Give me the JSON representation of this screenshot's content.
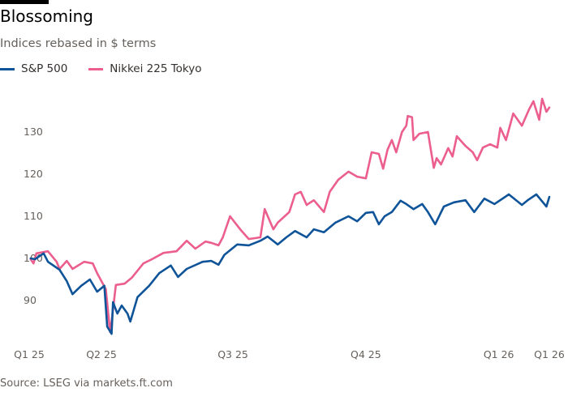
{
  "title": "Blossoming",
  "subtitle": "Indices rebased in $ terms",
  "source": "Source: LSEG via markets.ft.com",
  "colors": {
    "sp500": "#0f5499",
    "nikkei": "#eb5e8d"
  },
  "chart_data": {
    "type": "line",
    "title": "Blossoming",
    "subtitle": "Indices rebased in $ terms",
    "xlim": [
      "2025-02-10",
      "2026-02-05"
    ],
    "ylim": [
      80,
      140
    ],
    "grid": false,
    "legend_placement": "top-left",
    "y_ticks": [
      90,
      100,
      110,
      120,
      130
    ],
    "x_ticks": [
      {
        "label": "Q1 25",
        "date": "2025-02-10"
      },
      {
        "label": "Q2 25",
        "date": "2025-04-01"
      },
      {
        "label": "Q3 25",
        "date": "2025-07-01"
      },
      {
        "label": "Q4 25",
        "date": "2025-10-01"
      },
      {
        "label": "Q1 26",
        "date": "2026-01-01"
      },
      {
        "label": "Q1 26",
        "date": "2026-02-05"
      }
    ],
    "series": [
      {
        "name": "S&P 500",
        "color": "#0f5499",
        "points": [
          [
            "2025-02-11",
            100.0
          ],
          [
            "2025-02-14",
            99.8
          ],
          [
            "2025-02-20",
            101.2
          ],
          [
            "2025-02-23",
            99.2
          ],
          [
            "2025-03-03",
            97.3
          ],
          [
            "2025-03-08",
            94.6
          ],
          [
            "2025-03-12",
            91.5
          ],
          [
            "2025-03-18",
            93.5
          ],
          [
            "2025-03-24",
            95.0
          ],
          [
            "2025-03-29",
            92.1
          ],
          [
            "2025-04-03",
            93.5
          ],
          [
            "2025-04-05",
            83.8
          ],
          [
            "2025-04-08",
            82.1
          ],
          [
            "2025-04-09",
            89.6
          ],
          [
            "2025-04-12",
            86.9
          ],
          [
            "2025-04-15",
            88.8
          ],
          [
            "2025-04-19",
            86.9
          ],
          [
            "2025-04-21",
            85.0
          ],
          [
            "2025-04-26",
            90.8
          ],
          [
            "2025-05-04",
            93.5
          ],
          [
            "2025-05-11",
            96.5
          ],
          [
            "2025-05-19",
            98.3
          ],
          [
            "2025-05-24",
            95.6
          ],
          [
            "2025-05-30",
            97.5
          ],
          [
            "2025-06-10",
            99.2
          ],
          [
            "2025-06-16",
            99.4
          ],
          [
            "2025-06-21",
            98.5
          ],
          [
            "2025-06-25",
            100.8
          ],
          [
            "2025-07-04",
            103.3
          ],
          [
            "2025-07-12",
            103.1
          ],
          [
            "2025-07-20",
            104.2
          ],
          [
            "2025-07-25",
            105.2
          ],
          [
            "2025-08-01",
            103.3
          ],
          [
            "2025-08-07",
            105.0
          ],
          [
            "2025-08-13",
            106.5
          ],
          [
            "2025-08-21",
            105.0
          ],
          [
            "2025-08-26",
            106.9
          ],
          [
            "2025-09-02",
            106.2
          ],
          [
            "2025-09-10",
            108.5
          ],
          [
            "2025-09-19",
            110.0
          ],
          [
            "2025-09-25",
            108.8
          ],
          [
            "2025-10-01",
            110.8
          ],
          [
            "2025-10-06",
            111.0
          ],
          [
            "2025-10-10",
            108.1
          ],
          [
            "2025-10-14",
            110.0
          ],
          [
            "2025-10-19",
            111.0
          ],
          [
            "2025-10-25",
            113.7
          ],
          [
            "2025-10-29",
            112.9
          ],
          [
            "2025-11-03",
            111.7
          ],
          [
            "2025-11-09",
            112.9
          ],
          [
            "2025-11-13",
            111.0
          ],
          [
            "2025-11-18",
            108.1
          ],
          [
            "2025-11-24",
            112.3
          ],
          [
            "2025-12-01",
            113.3
          ],
          [
            "2025-12-09",
            113.8
          ],
          [
            "2025-12-15",
            111.0
          ],
          [
            "2025-12-22",
            114.2
          ],
          [
            "2025-12-29",
            112.9
          ],
          [
            "2026-01-08",
            115.2
          ],
          [
            "2026-01-17",
            112.7
          ],
          [
            "2026-01-21",
            113.8
          ],
          [
            "2026-01-27",
            115.2
          ],
          [
            "2026-02-03",
            112.3
          ],
          [
            "2026-02-05",
            114.6
          ]
        ]
      },
      {
        "name": "Nikkei 225 Tokyo",
        "color": "#eb5e8d",
        "points": [
          [
            "2025-02-11",
            99.8
          ],
          [
            "2025-02-13",
            98.8
          ],
          [
            "2025-02-15",
            101.2
          ],
          [
            "2025-02-23",
            101.7
          ],
          [
            "2025-03-01",
            99.2
          ],
          [
            "2025-03-03",
            97.5
          ],
          [
            "2025-03-08",
            99.4
          ],
          [
            "2025-03-12",
            97.5
          ],
          [
            "2025-03-20",
            99.2
          ],
          [
            "2025-03-26",
            98.8
          ],
          [
            "2025-03-29",
            96.5
          ],
          [
            "2025-04-04",
            92.7
          ],
          [
            "2025-04-07",
            82.5
          ],
          [
            "2025-04-08",
            85.0
          ],
          [
            "2025-04-11",
            93.7
          ],
          [
            "2025-04-17",
            94.0
          ],
          [
            "2025-04-22",
            95.4
          ],
          [
            "2025-04-30",
            98.8
          ],
          [
            "2025-05-06",
            99.8
          ],
          [
            "2025-05-14",
            101.3
          ],
          [
            "2025-05-23",
            101.7
          ],
          [
            "2025-05-30",
            104.2
          ],
          [
            "2025-06-05",
            102.3
          ],
          [
            "2025-06-12",
            104.0
          ],
          [
            "2025-06-16",
            103.7
          ],
          [
            "2025-06-21",
            103.1
          ],
          [
            "2025-06-24",
            105.0
          ],
          [
            "2025-06-29",
            110.0
          ],
          [
            "2025-07-06",
            106.9
          ],
          [
            "2025-07-12",
            104.6
          ],
          [
            "2025-07-20",
            105.0
          ],
          [
            "2025-07-23",
            111.7
          ],
          [
            "2025-07-29",
            106.9
          ],
          [
            "2025-08-01",
            108.5
          ],
          [
            "2025-08-09",
            111.0
          ],
          [
            "2025-08-13",
            115.2
          ],
          [
            "2025-08-17",
            115.8
          ],
          [
            "2025-08-21",
            112.7
          ],
          [
            "2025-08-26",
            113.8
          ],
          [
            "2025-09-02",
            111.0
          ],
          [
            "2025-09-06",
            115.8
          ],
          [
            "2025-09-12",
            118.7
          ],
          [
            "2025-09-19",
            120.6
          ],
          [
            "2025-09-25",
            119.4
          ],
          [
            "2025-10-01",
            119.0
          ],
          [
            "2025-10-05",
            125.2
          ],
          [
            "2025-10-10",
            124.8
          ],
          [
            "2025-10-13",
            121.3
          ],
          [
            "2025-10-16",
            125.8
          ],
          [
            "2025-10-19",
            128.1
          ],
          [
            "2025-10-22",
            125.2
          ],
          [
            "2025-10-26",
            130.0
          ],
          [
            "2025-10-29",
            131.5
          ],
          [
            "2025-10-30",
            133.8
          ],
          [
            "2025-11-02",
            133.5
          ],
          [
            "2025-11-03",
            128.1
          ],
          [
            "2025-11-07",
            129.6
          ],
          [
            "2025-11-13",
            130.0
          ],
          [
            "2025-11-17",
            121.5
          ],
          [
            "2025-11-19",
            123.8
          ],
          [
            "2025-11-22",
            122.3
          ],
          [
            "2025-11-27",
            126.2
          ],
          [
            "2025-11-30",
            124.2
          ],
          [
            "2025-12-03",
            129.0
          ],
          [
            "2025-12-09",
            126.7
          ],
          [
            "2025-12-14",
            125.2
          ],
          [
            "2025-12-17",
            123.3
          ],
          [
            "2025-12-21",
            126.3
          ],
          [
            "2025-12-26",
            127.1
          ],
          [
            "2025-12-31",
            126.3
          ],
          [
            "2026-01-02",
            131.0
          ],
          [
            "2026-01-06",
            128.1
          ],
          [
            "2026-01-11",
            134.4
          ],
          [
            "2026-01-17",
            131.5
          ],
          [
            "2026-01-22",
            135.4
          ],
          [
            "2026-01-25",
            137.3
          ],
          [
            "2026-01-29",
            132.9
          ],
          [
            "2026-01-31",
            137.9
          ],
          [
            "2026-02-03",
            134.8
          ],
          [
            "2026-02-05",
            135.8
          ]
        ]
      }
    ]
  }
}
